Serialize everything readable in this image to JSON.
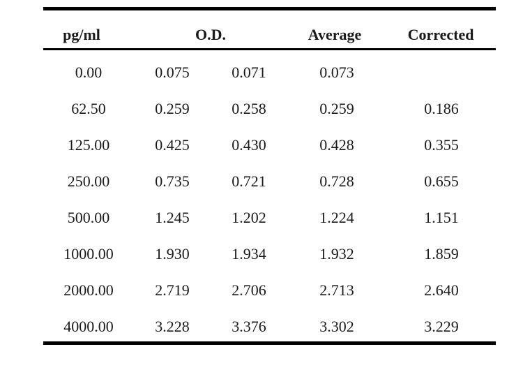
{
  "table": {
    "headers": {
      "concentration": "pg/ml",
      "od": "O.D.",
      "average": "Average",
      "corrected": "Corrected"
    },
    "rows": [
      {
        "conc": "0.00",
        "od1": "0.075",
        "od2": "0.071",
        "avg": "0.073",
        "corr": ""
      },
      {
        "conc": "62.50",
        "od1": "0.259",
        "od2": "0.258",
        "avg": "0.259",
        "corr": "0.186"
      },
      {
        "conc": "125.00",
        "od1": "0.425",
        "od2": "0.430",
        "avg": "0.428",
        "corr": "0.355"
      },
      {
        "conc": "250.00",
        "od1": "0.735",
        "od2": "0.721",
        "avg": "0.728",
        "corr": "0.655"
      },
      {
        "conc": "500.00",
        "od1": "1.245",
        "od2": "1.202",
        "avg": "1.224",
        "corr": "1.151"
      },
      {
        "conc": "1000.00",
        "od1": "1.930",
        "od2": "1.934",
        "avg": "1.932",
        "corr": "1.859"
      },
      {
        "conc": "2000.00",
        "od1": "2.719",
        "od2": "2.706",
        "avg": "2.713",
        "corr": "2.640"
      },
      {
        "conc": "4000.00",
        "od1": "3.228",
        "od2": "3.376",
        "avg": "3.302",
        "corr": "3.229"
      }
    ]
  }
}
